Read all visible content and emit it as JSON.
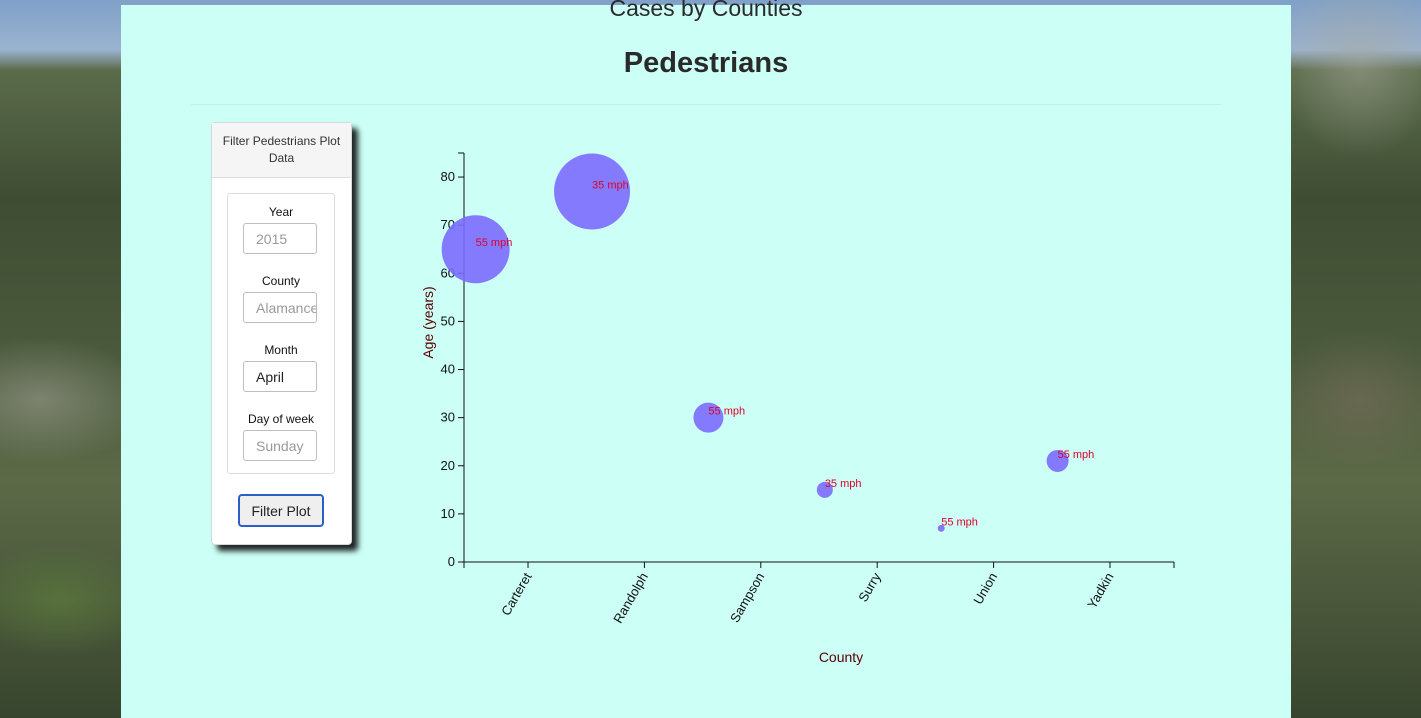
{
  "page": {
    "top_title": "Cases by Counties",
    "chart_title": "Pedestrians"
  },
  "filter": {
    "header": "Filter Pedestrians Plot Data",
    "fields": [
      {
        "label": "Year",
        "placeholder": "2015",
        "value": ""
      },
      {
        "label": "County",
        "placeholder": "Alamance",
        "value": ""
      },
      {
        "label": "Month",
        "placeholder": "",
        "value": "April"
      },
      {
        "label": "Day of week",
        "placeholder": "Sunday",
        "value": ""
      }
    ],
    "button_label": "Filter Plot"
  },
  "chart_data": {
    "type": "scatter",
    "title": "Pedestrians",
    "xlabel": "County",
    "ylabel": "Age (years)",
    "categories": [
      "Carteret",
      "Randolph",
      "Sampson",
      "Surry",
      "Union",
      "Yadkin"
    ],
    "ylim": [
      0,
      85
    ],
    "yticks": [
      0,
      10,
      20,
      30,
      40,
      50,
      60,
      70,
      80
    ],
    "grid": false,
    "bubble_color": "#7b6cff",
    "label_color": "#e0002a",
    "points": [
      {
        "x": 0.1,
        "y": 65,
        "size": 34,
        "label": "55 mph"
      },
      {
        "x": 1.1,
        "y": 77,
        "size": 38,
        "label": "35 mph"
      },
      {
        "x": 2.1,
        "y": 30,
        "size": 15,
        "label": "55 mph"
      },
      {
        "x": 3.1,
        "y": 15,
        "size": 8,
        "label": "35 mph"
      },
      {
        "x": 4.1,
        "y": 7,
        "size": 3.5,
        "label": "55 mph"
      },
      {
        "x": 5.1,
        "y": 21,
        "size": 11,
        "label": "55 mph"
      }
    ]
  }
}
